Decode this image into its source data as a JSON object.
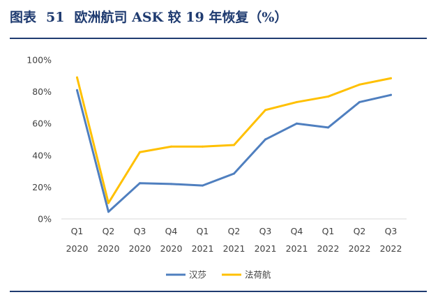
{
  "header": {
    "figure_label": "图表",
    "figure_number": "51",
    "title": "欧洲航司 ASK 较 19 年恢复（%）"
  },
  "colors": {
    "title": "#1f3b70",
    "rule": "#1f3b70",
    "axis": "#d9d9d9",
    "text": "#404040"
  },
  "chart_data": {
    "type": "line",
    "title": "欧洲航司 ASK 较 19 年恢复（%）",
    "xlabel": "",
    "ylabel": "",
    "categories": [
      [
        "Q1",
        "2020"
      ],
      [
        "Q2",
        "2020"
      ],
      [
        "Q3",
        "2020"
      ],
      [
        "Q4",
        "2020"
      ],
      [
        "Q1",
        "2021"
      ],
      [
        "Q2",
        "2021"
      ],
      [
        "Q3",
        "2021"
      ],
      [
        "Q4",
        "2021"
      ],
      [
        "Q1",
        "2022"
      ],
      [
        "Q2",
        "2022"
      ],
      [
        "Q3",
        "2022"
      ]
    ],
    "ylim": [
      0,
      100
    ],
    "yticks": [
      0,
      20,
      40,
      60,
      80,
      100
    ],
    "ytick_labels": [
      "0%",
      "20%",
      "40%",
      "60%",
      "80%",
      "100%"
    ],
    "grid": false,
    "legend_position": "bottom",
    "series": [
      {
        "name": "汉莎",
        "color": "#4f7fbf",
        "values": [
          81,
          4.5,
          22.5,
          22,
          21,
          28.5,
          50,
          60,
          57.5,
          73.5,
          78
        ]
      },
      {
        "name": "法荷航",
        "color": "#ffc000",
        "values": [
          89,
          10,
          42,
          45.5,
          45.5,
          46.5,
          68.5,
          73.5,
          77,
          84.5,
          88.5
        ]
      }
    ]
  }
}
